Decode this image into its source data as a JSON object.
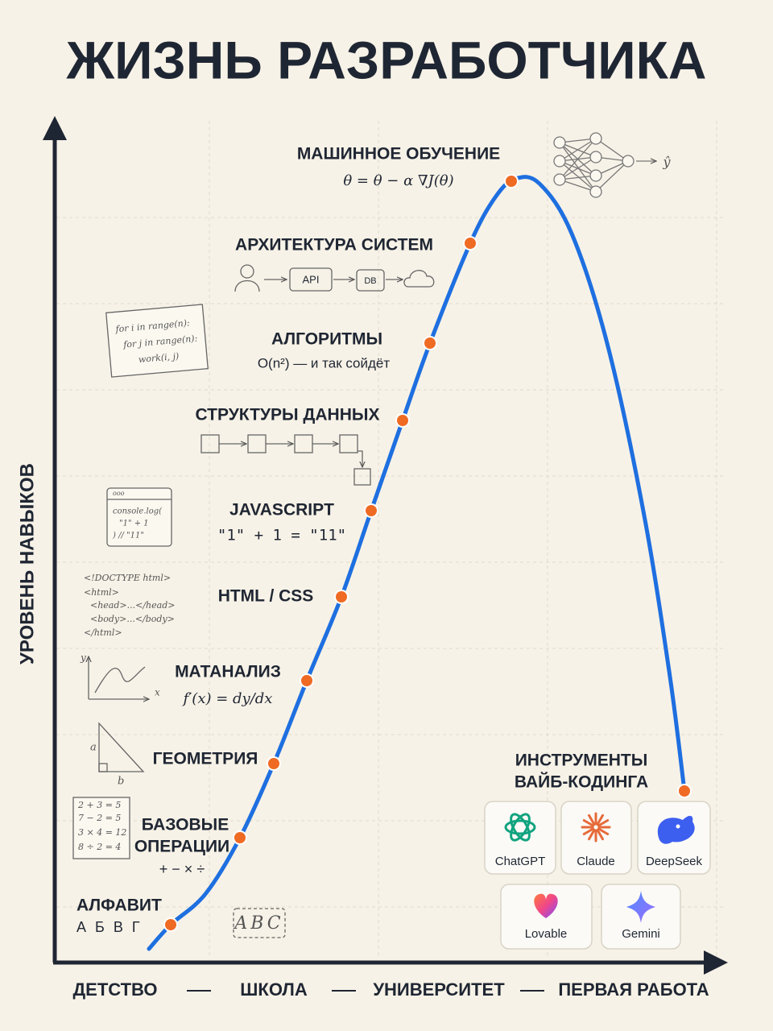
{
  "title": "ЖИЗНЬ РАЗРАБОТЧИКА",
  "y_axis_label": "УРОВЕНЬ НАВЫКОВ",
  "x_axis": {
    "stages": [
      "ДЕТСТВО",
      "ШКОЛА",
      "УНИВЕРСИТЕТ",
      "ПЕРВАЯ РАБОТА"
    ]
  },
  "milestones": [
    {
      "label": "АЛФАВИТ",
      "note": "А Б В Г"
    },
    {
      "label": [
        "БАЗОВЫЕ",
        "ОПЕРАЦИИ"
      ],
      "note": "+ − × ÷"
    },
    {
      "label": "ГЕОМЕТРИЯ"
    },
    {
      "label": "МАТАНАЛИЗ",
      "note": "f′(x) = dy/dx"
    },
    {
      "label": "HTML / CSS"
    },
    {
      "label": "JAVASCRIPT",
      "note": "\"1\"  + 1  =  \"11\""
    },
    {
      "label": "СТРУКТУРЫ ДАННЫХ"
    },
    {
      "label": "АЛГОРИТМЫ",
      "note": "O(n²) — и так сойдёт"
    },
    {
      "label": "АРХИТЕКТУРА СИСТЕМ",
      "diagram": [
        "API",
        "DB"
      ]
    },
    {
      "label": "МАШИННОЕ ОБУЧЕНИЕ",
      "note": "θ = θ − α ∇J(θ)",
      "output": "ŷ"
    }
  ],
  "sketches": {
    "loops": [
      "for i in range(n):",
      "for j in range(n):",
      "work(i, j)"
    ],
    "console": [
      "ooo",
      "console.log(",
      "\"1\" + 1",
      ") // \"11\""
    ],
    "html": [
      "<!DOCTYPE html>",
      "<html>",
      "<head>...</head>",
      "<body>...</body>",
      "</html>"
    ],
    "graph": [
      "y",
      "x"
    ],
    "triangle": [
      "a",
      "b"
    ],
    "arithmetic": [
      "2 + 3 = 5",
      "7 − 2 = 5",
      "3 × 4 = 12",
      "8 ÷ 2 = 4"
    ],
    "letters": "ABC"
  },
  "tools": {
    "title": [
      "ИНСТРУМЕНТЫ",
      "ВАЙБ-КОДИНГА"
    ],
    "items": [
      "ChatGPT",
      "Claude",
      "DeepSeek",
      "Lovable",
      "Gemini"
    ]
  }
}
